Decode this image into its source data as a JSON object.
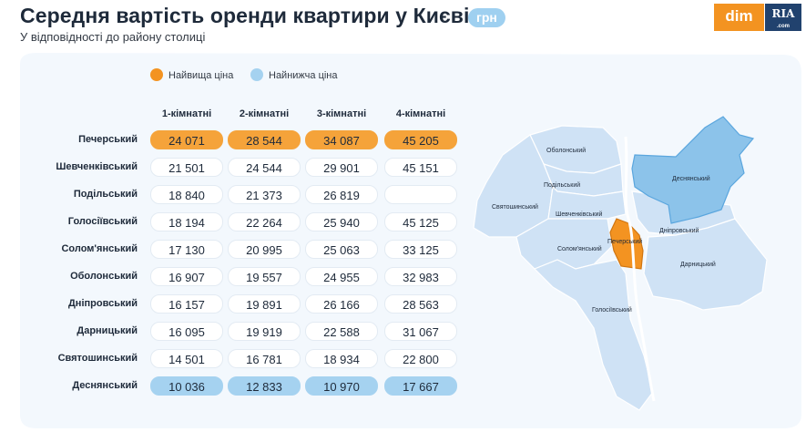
{
  "header": {
    "title": "Середня вартість оренди квартири у Києві",
    "unit": "грн",
    "subtitle": "У відповідності до району столиці"
  },
  "logo": {
    "left": "dim",
    "right": "RIA",
    "right_small": ".com"
  },
  "legend": {
    "highest": "Найвища ціна",
    "lowest": "Найнижча ціна"
  },
  "colors": {
    "highest": "#f5a33a",
    "lowest": "#a5d2f0",
    "map_fill": "#cfe2f5",
    "map_desn": "#8cc3ea"
  },
  "chart_data": {
    "type": "table",
    "title": "Середня вартість оренди квартири у Києві",
    "columns": [
      "1-кімнатні",
      "2-кімнатні",
      "3-кімнатні",
      "4-кімнатні"
    ],
    "rows": [
      {
        "district": "Печерський",
        "values": [
          "24 071",
          "28 544",
          "34 087",
          "45 205"
        ],
        "highlight": "highest"
      },
      {
        "district": "Шевченківський",
        "values": [
          "21 501",
          "24 544",
          "29 901",
          "45 151"
        ],
        "highlight": ""
      },
      {
        "district": "Подільський",
        "values": [
          "18 840",
          "21 373",
          "26 819",
          ""
        ],
        "highlight": ""
      },
      {
        "district": "Голосіївський",
        "values": [
          "18 194",
          "22 264",
          "25 940",
          "45 125"
        ],
        "highlight": ""
      },
      {
        "district": "Солом'янський",
        "values": [
          "17 130",
          "20 995",
          "25 063",
          "33 125"
        ],
        "highlight": ""
      },
      {
        "district": "Оболонський",
        "values": [
          "16 907",
          "19 557",
          "24 955",
          "32 983"
        ],
        "highlight": ""
      },
      {
        "district": "Дніпровський",
        "values": [
          "16 157",
          "19 891",
          "26 166",
          "28 563"
        ],
        "highlight": ""
      },
      {
        "district": "Дарницький",
        "values": [
          "16 095",
          "19 919",
          "22 588",
          "31 067"
        ],
        "highlight": ""
      },
      {
        "district": "Святошинський",
        "values": [
          "14 501",
          "16 781",
          "18 934",
          "22 800"
        ],
        "highlight": ""
      },
      {
        "district": "Деснянський",
        "values": [
          "10 036",
          "12 833",
          "10 970",
          "17 667"
        ],
        "highlight": "lowest"
      }
    ]
  },
  "map": {
    "labels": {
      "obolonskyi": "Оболонський",
      "desnianskyi": "Деснянський",
      "podilskyi": "Подільський",
      "sviatoshynskyi": "Святошинський",
      "shevchenkivskyi": "Шевченківський",
      "dniprovskyi": "Дніпровський",
      "pecherskyi": "Печерський",
      "solomianskyi": "Солом'янський",
      "darnytskyi": "Дарницький",
      "holosiivskyi": "Голосіївський"
    }
  }
}
